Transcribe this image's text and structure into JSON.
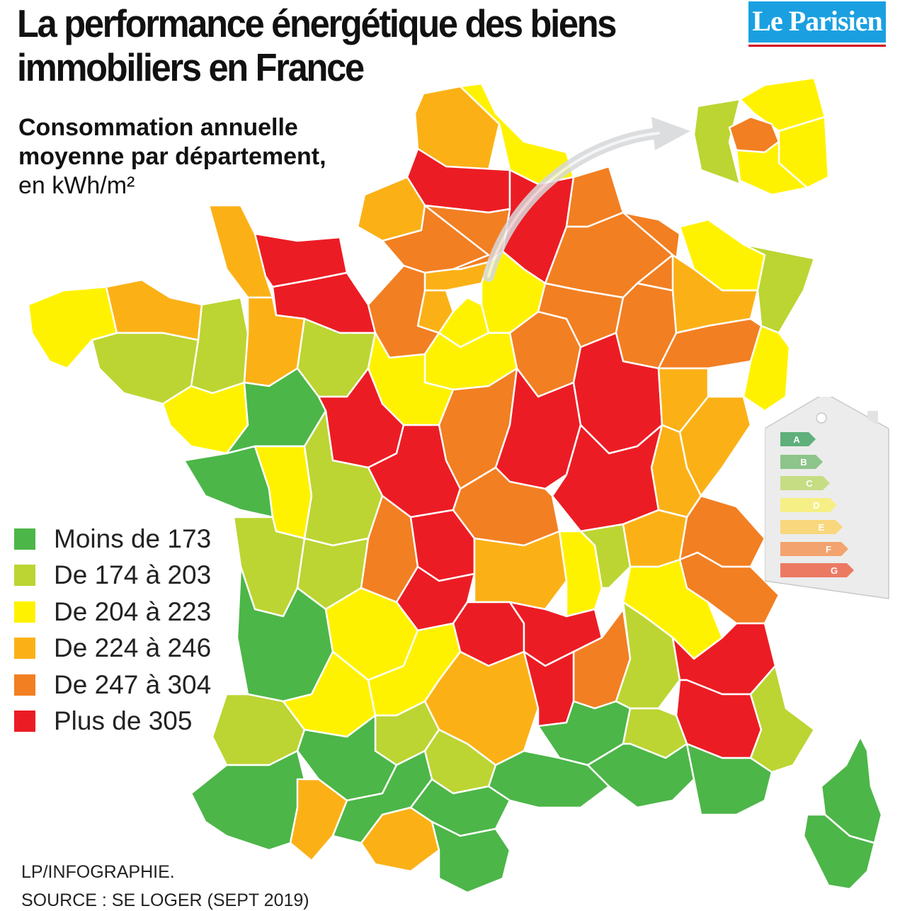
{
  "header": {
    "title_line1": "La performance énergétique des biens",
    "title_line2": "immobiliers en France",
    "subtitle_line1": "Consommation annuelle",
    "subtitle_line2": "moyenne par département,",
    "subtitle_line3": "en kWh/m²"
  },
  "brand": {
    "name": "Le Parisien",
    "color": "#1aa0e0"
  },
  "legend": {
    "items": [
      {
        "label": "Moins de 173",
        "color": "#4cb648"
      },
      {
        "label": "De 174 à 203",
        "color": "#bcd532"
      },
      {
        "label": "De 204 à 223",
        "color": "#fff200"
      },
      {
        "label": "De 224 à 246",
        "color": "#fbb116"
      },
      {
        "label": "De 247 à 304",
        "color": "#f27f22"
      },
      {
        "label": "Plus de 305",
        "color": "#ec1c24"
      }
    ]
  },
  "energy_label": {
    "classes": [
      {
        "letter": "A",
        "color": "#5fb07b"
      },
      {
        "letter": "B",
        "color": "#8dc58a"
      },
      {
        "letter": "C",
        "color": "#c6dd83"
      },
      {
        "letter": "D",
        "color": "#f6ef85"
      },
      {
        "letter": "E",
        "color": "#f8d77d"
      },
      {
        "letter": "F",
        "color": "#f3a36e"
      },
      {
        "letter": "G",
        "color": "#ec7a63"
      }
    ]
  },
  "footer": {
    "credit": "LP/INFOGRAPHIE.",
    "source": "SOURCE : SE LOGER (SEPT 2019)"
  }
}
